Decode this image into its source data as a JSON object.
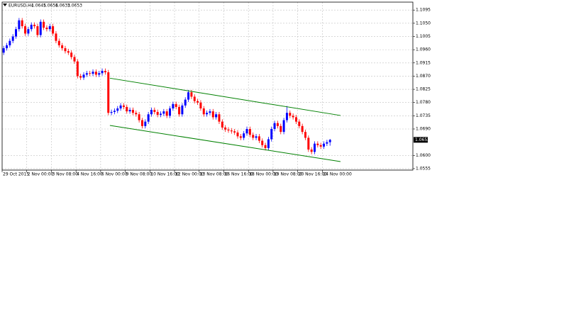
{
  "chart_data": {
    "type": "candlestick",
    "title": "EURUSD,H4",
    "up_color": "#0000ff",
    "down_color": "#ff0000",
    "grid": true,
    "ylim": [
      1.055,
      1.1122
    ],
    "yticks": [
      1.1095,
      {
        "value": 1.105,
        "label": "1.1050"
      },
      1.1005,
      {
        "value": 1.096,
        "label": "1.0960"
      },
      1.0915,
      {
        "value": 1.087,
        "label": "1.0870"
      },
      1.0825,
      {
        "value": 1.078,
        "label": "1.0780"
      },
      1.0735,
      {
        "value": 1.069,
        "label": "1.0690"
      },
      {
        "value": 1.06,
        "label": "1.0600"
      },
      1.0555
    ],
    "categories": [
      "29 Oct 2015",
      null,
      null,
      null,
      null,
      null,
      null,
      null,
      "2 Nov 00:00",
      null,
      null,
      null,
      null,
      null,
      null,
      null,
      "3 Nov 08:00",
      null,
      null,
      null,
      null,
      null,
      null,
      null,
      "4 Nov 16:00",
      null,
      null,
      null,
      null,
      null,
      null,
      null,
      "6 Nov 00:00",
      null,
      null,
      null,
      null,
      null,
      null,
      null,
      "9 Nov 08:00",
      null,
      null,
      null,
      null,
      null,
      null,
      null,
      "10 Nov 16:00",
      null,
      null,
      null,
      null,
      null,
      null,
      null,
      "12 Nov 00:00",
      null,
      null,
      null,
      null,
      null,
      null,
      null,
      "13 Nov 08:00",
      null,
      null,
      null,
      null,
      null,
      null,
      null,
      "16 Nov 16:00",
      null,
      null,
      null,
      null,
      null,
      null,
      null,
      "18 Nov 00:00",
      null,
      null,
      null,
      null,
      null,
      null,
      null,
      "19 Nov 08:00",
      null,
      null,
      null,
      null,
      null,
      null,
      null,
      "20 Nov 16:00",
      null,
      null,
      null,
      null,
      null,
      null,
      null,
      "24 Nov 00:00",
      null,
      null
    ],
    "open": [
      1.095,
      1.0965,
      1.0975,
      1.099,
      1.1005,
      1.103,
      1.106,
      1.104,
      1.1015,
      1.103,
      1.1045,
      1.104,
      1.101,
      1.1055,
      1.1035,
      1.103,
      1.104,
      1.1015,
      1.099,
      1.0975,
      1.0965,
      1.0955,
      1.095,
      1.0935,
      1.092,
      1.087,
      1.0865,
      1.0875,
      1.088,
      1.0878,
      1.0885,
      1.0875,
      1.088,
      1.0888,
      1.0883,
      1.0745,
      1.0748,
      1.0752,
      1.076,
      1.077,
      1.0765,
      1.075,
      1.0755,
      1.0745,
      1.074,
      1.072,
      1.07,
      1.0715,
      1.074,
      1.0755,
      1.0748,
      1.0738,
      1.0742,
      1.075,
      1.0735,
      1.076,
      1.0775,
      1.0765,
      1.074,
      1.077,
      1.079,
      1.0815,
      1.08,
      1.0785,
      1.078,
      1.076,
      1.074,
      1.0745,
      1.075,
      1.073,
      1.074,
      1.0715,
      1.0695,
      1.0688,
      1.0685,
      1.0682,
      1.0678,
      1.0665,
      1.066,
      1.0675,
      1.069,
      1.067,
      1.066,
      1.0665,
      1.065,
      1.0635,
      1.0625,
      1.0655,
      1.069,
      1.071,
      1.07,
      1.068,
      1.072,
      1.0745,
      1.0735,
      1.073,
      1.0715,
      1.07,
      1.068,
      1.066,
      1.062,
      1.0612,
      1.064,
      1.0635,
      1.063,
      1.064,
      1.0645
    ],
    "high": [
      1.0973,
      1.0983,
      1.0998,
      1.1013,
      1.1038,
      1.1068,
      1.1068,
      1.1048,
      1.1038,
      1.1053,
      1.1053,
      1.1048,
      1.1063,
      1.1063,
      1.1043,
      1.1048,
      1.1048,
      1.1023,
      1.0998,
      1.0983,
      1.0973,
      1.0963,
      1.0958,
      1.0943,
      1.0928,
      1.0878,
      1.0883,
      1.0888,
      1.0888,
      1.0893,
      1.0893,
      1.0888,
      1.0896,
      1.0896,
      1.0891,
      1.0756,
      1.076,
      1.0768,
      1.0778,
      1.0778,
      1.0773,
      1.0763,
      1.0763,
      1.0753,
      1.0748,
      1.0728,
      1.0723,
      1.0748,
      1.0763,
      1.0763,
      1.0756,
      1.075,
      1.0758,
      1.0758,
      1.0768,
      1.0783,
      1.0783,
      1.0773,
      1.0778,
      1.0798,
      1.0823,
      1.0823,
      1.0808,
      1.0793,
      1.0788,
      1.0768,
      1.0753,
      1.0758,
      1.0758,
      1.0748,
      1.0748,
      1.0723,
      1.0703,
      1.0696,
      1.0693,
      1.069,
      1.0686,
      1.0673,
      1.0683,
      1.0698,
      1.0698,
      1.0678,
      1.0673,
      1.0673,
      1.0658,
      1.0643,
      1.0663,
      1.0698,
      1.0718,
      1.0718,
      1.0708,
      1.0728,
      1.0768,
      1.0753,
      1.0743,
      1.0738,
      1.0723,
      1.0708,
      1.0688,
      1.0668,
      1.0628,
      1.0648,
      1.0648,
      1.0643,
      1.0648,
      1.0653,
      1.0656
    ],
    "low": [
      1.0942,
      1.0957,
      1.0967,
      1.0982,
      1.0997,
      1.1022,
      1.1032,
      1.1007,
      1.1007,
      1.1022,
      1.1032,
      1.1002,
      1.1002,
      1.1027,
      1.1022,
      1.1022,
      1.1007,
      1.0982,
      1.0967,
      1.0957,
      1.0947,
      1.0942,
      1.0927,
      1.0912,
      1.0862,
      1.0857,
      1.0857,
      1.0867,
      1.087,
      1.087,
      1.0867,
      1.0867,
      1.0872,
      1.0875,
      1.0737,
      1.0737,
      1.074,
      1.0744,
      1.0752,
      1.0757,
      1.0742,
      1.0742,
      1.0737,
      1.0732,
      1.0712,
      1.0692,
      1.0692,
      1.0707,
      1.0732,
      1.074,
      1.073,
      1.073,
      1.0734,
      1.0727,
      1.0727,
      1.0752,
      1.0757,
      1.0732,
      1.0732,
      1.0762,
      1.0782,
      1.0792,
      1.0777,
      1.0772,
      1.0752,
      1.0732,
      1.0732,
      1.0737,
      1.0722,
      1.0722,
      1.0707,
      1.0687,
      1.068,
      1.0677,
      1.0674,
      1.067,
      1.0657,
      1.0652,
      1.0652,
      1.0667,
      1.0662,
      1.0652,
      1.0652,
      1.0642,
      1.0627,
      1.0617,
      1.0617,
      1.0647,
      1.0682,
      1.0692,
      1.0672,
      1.0672,
      1.0712,
      1.0727,
      1.0722,
      1.0707,
      1.0692,
      1.0672,
      1.0652,
      1.0612,
      1.0604,
      1.0604,
      1.0627,
      1.0622,
      1.0622,
      1.0632,
      1.0633
    ],
    "close": [
      1.0965,
      1.0975,
      1.099,
      1.1005,
      1.103,
      1.106,
      1.104,
      1.1015,
      1.103,
      1.1045,
      1.104,
      1.101,
      1.1055,
      1.1035,
      1.103,
      1.104,
      1.1015,
      1.099,
      1.0975,
      1.0965,
      1.0955,
      1.095,
      1.0935,
      1.092,
      1.087,
      1.0865,
      1.0875,
      1.088,
      1.0878,
      1.0885,
      1.0875,
      1.088,
      1.0888,
      1.0883,
      1.0745,
      1.0748,
      1.0752,
      1.076,
      1.077,
      1.0765,
      1.075,
      1.0755,
      1.0745,
      1.074,
      1.072,
      1.07,
      1.0715,
      1.074,
      1.0755,
      1.0748,
      1.0738,
      1.0742,
      1.075,
      1.0735,
      1.076,
      1.0775,
      1.0765,
      1.074,
      1.077,
      1.079,
      1.0815,
      1.08,
      1.0785,
      1.078,
      1.076,
      1.074,
      1.0745,
      1.075,
      1.073,
      1.074,
      1.0715,
      1.0695,
      1.0688,
      1.0685,
      1.0682,
      1.0678,
      1.0665,
      1.066,
      1.0675,
      1.069,
      1.067,
      1.066,
      1.0665,
      1.065,
      1.0635,
      1.0625,
      1.0655,
      1.069,
      1.071,
      1.07,
      1.068,
      1.072,
      1.0745,
      1.0735,
      1.073,
      1.0715,
      1.07,
      1.068,
      1.066,
      1.062,
      1.0612,
      1.064,
      1.0635,
      1.063,
      1.064,
      1.0645,
      1.0653
    ],
    "channel_color": "#008000",
    "channel": [
      {
        "x": [
          34.5,
          109.4
        ],
        "y": [
          1.0863,
          1.0736
        ]
      },
      {
        "x": [
          34.5,
          109.4
        ],
        "y": [
          1.0702,
          1.0579
        ]
      }
    ]
  }
}
